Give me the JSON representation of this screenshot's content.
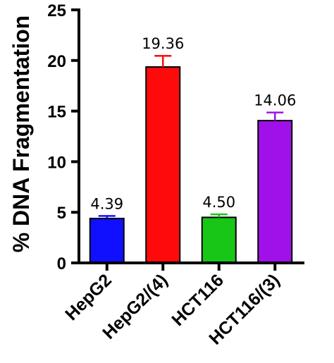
{
  "chart_data": {
    "type": "bar",
    "categories": [
      "HepG2",
      "HepG2/(4)",
      "HCT116",
      "HCT116/(3)"
    ],
    "values": [
      4.39,
      19.36,
      4.5,
      14.06
    ],
    "value_labels": [
      "4.39",
      "19.36",
      "4.50",
      "14.06"
    ],
    "errors": [
      0.25,
      1.1,
      0.3,
      0.8
    ],
    "colors": [
      "#1010ff",
      "#ff0a0a",
      "#17c617",
      "#a010e8"
    ],
    "error_bar_colors": [
      "#1010ff",
      "#ff0a0a",
      "#17c617",
      "#a010e8"
    ],
    "ylabel": "% DNA Fragmentation",
    "xlabel": "",
    "title": "",
    "ylim": [
      0,
      25
    ],
    "yticks": [
      "0",
      "5",
      "10",
      "15",
      "20",
      "25"
    ],
    "grid": false,
    "legend": "none"
  }
}
